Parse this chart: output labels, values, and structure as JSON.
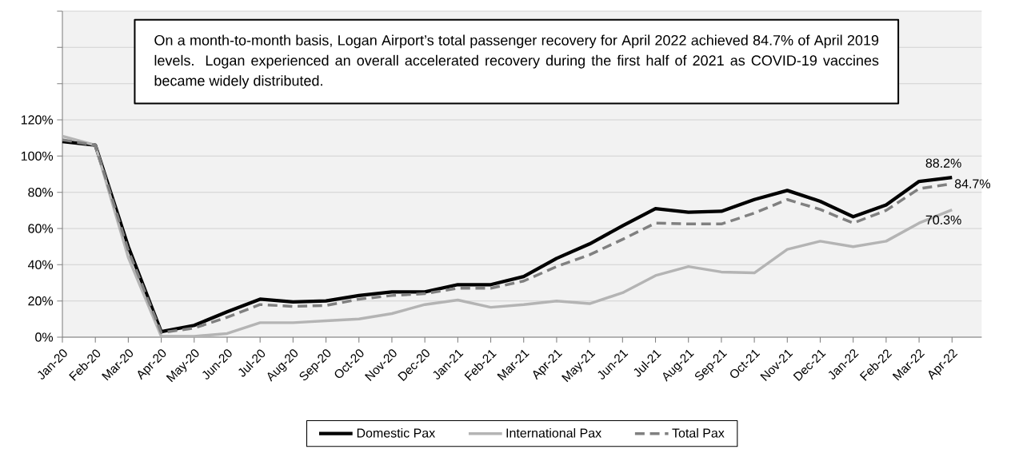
{
  "chart_data": {
    "type": "line",
    "annotations": [
      "On a month-to-month basis, Logan Airport’s total passenger recovery for April 2022 achieved 84.7% of April 2019 levels. Logan experienced an overall accelerated recovery during the first half of 2021 as COVID-19 vaccines became widely distributed."
    ],
    "categories": [
      "Jan-20",
      "Feb-20",
      "Mar-20",
      "Apr-20",
      "May-20",
      "Jun-20",
      "Jul-20",
      "Aug-20",
      "Sep-20",
      "Oct-20",
      "Nov-20",
      "Dec-20",
      "Jan-21",
      "Feb-21",
      "Mar-21",
      "Apr-21",
      "May-21",
      "Jun-21",
      "Jul-21",
      "Aug-21",
      "Sep-21",
      "Oct-21",
      "Nov-21",
      "Dec-21",
      "Jan-22",
      "Feb-22",
      "Mar-22",
      "Apr-22"
    ],
    "series": [
      {
        "name": "Domestic Pax",
        "color": "#000000",
        "line_style": "solid",
        "values": [
          108,
          106,
          50,
          3,
          6.5,
          14,
          21,
          19.5,
          20,
          23,
          25,
          25,
          29,
          29,
          33.5,
          43.5,
          51.5,
          61.5,
          71,
          69,
          69.5,
          76,
          81,
          75,
          66.5,
          73,
          86,
          88.2
        ],
        "value_labels": [
          null,
          null,
          null,
          null,
          null,
          null,
          null,
          null,
          null,
          null,
          null,
          null,
          null,
          null,
          null,
          null,
          null,
          null,
          null,
          null,
          null,
          null,
          null,
          null,
          null,
          null,
          null,
          "88.2%"
        ]
      },
      {
        "name": "International Pax",
        "color": "#b4b4b4",
        "line_style": "solid",
        "values": [
          111,
          106,
          44,
          0.5,
          0.5,
          2,
          8,
          8,
          9,
          10,
          13,
          18,
          20.5,
          16.5,
          18,
          20,
          18.5,
          24.5,
          34,
          39,
          36,
          35.5,
          48.5,
          53,
          50,
          53,
          63,
          70.3
        ],
        "value_labels": [
          null,
          null,
          null,
          null,
          null,
          null,
          null,
          null,
          null,
          null,
          null,
          null,
          null,
          null,
          null,
          null,
          null,
          null,
          null,
          null,
          null,
          null,
          null,
          null,
          null,
          null,
          null,
          "70.3%"
        ]
      },
      {
        "name": "Total Pax",
        "color": "#808080",
        "line_style": "dashed",
        "values": [
          109,
          106,
          48,
          2.5,
          5,
          11,
          18,
          17,
          17.5,
          21,
          23,
          24,
          27,
          27,
          31,
          39,
          45.5,
          54,
          63,
          62.5,
          62.5,
          68.5,
          76,
          70.5,
          63,
          70,
          82,
          84.7
        ],
        "value_labels": [
          null,
          null,
          null,
          null,
          null,
          null,
          null,
          null,
          null,
          null,
          null,
          null,
          null,
          null,
          null,
          null,
          null,
          null,
          null,
          null,
          null,
          null,
          null,
          null,
          null,
          null,
          null,
          "84.7%"
        ]
      }
    ],
    "ylim": [
      0,
      180
    ],
    "yticks": [
      {
        "value": 0,
        "label": "0%"
      },
      {
        "value": 20,
        "label": "20%"
      },
      {
        "value": 40,
        "label": "40%"
      },
      {
        "value": 60,
        "label": "60%"
      },
      {
        "value": 80,
        "label": "80%"
      },
      {
        "value": 100,
        "label": "100%"
      },
      {
        "value": 120,
        "label": "120%"
      },
      {
        "value": 140,
        "label": null
      },
      {
        "value": 160,
        "label": null
      },
      {
        "value": 180,
        "label": null
      }
    ],
    "grid": "y",
    "legend": "bottom",
    "marker": "none"
  }
}
